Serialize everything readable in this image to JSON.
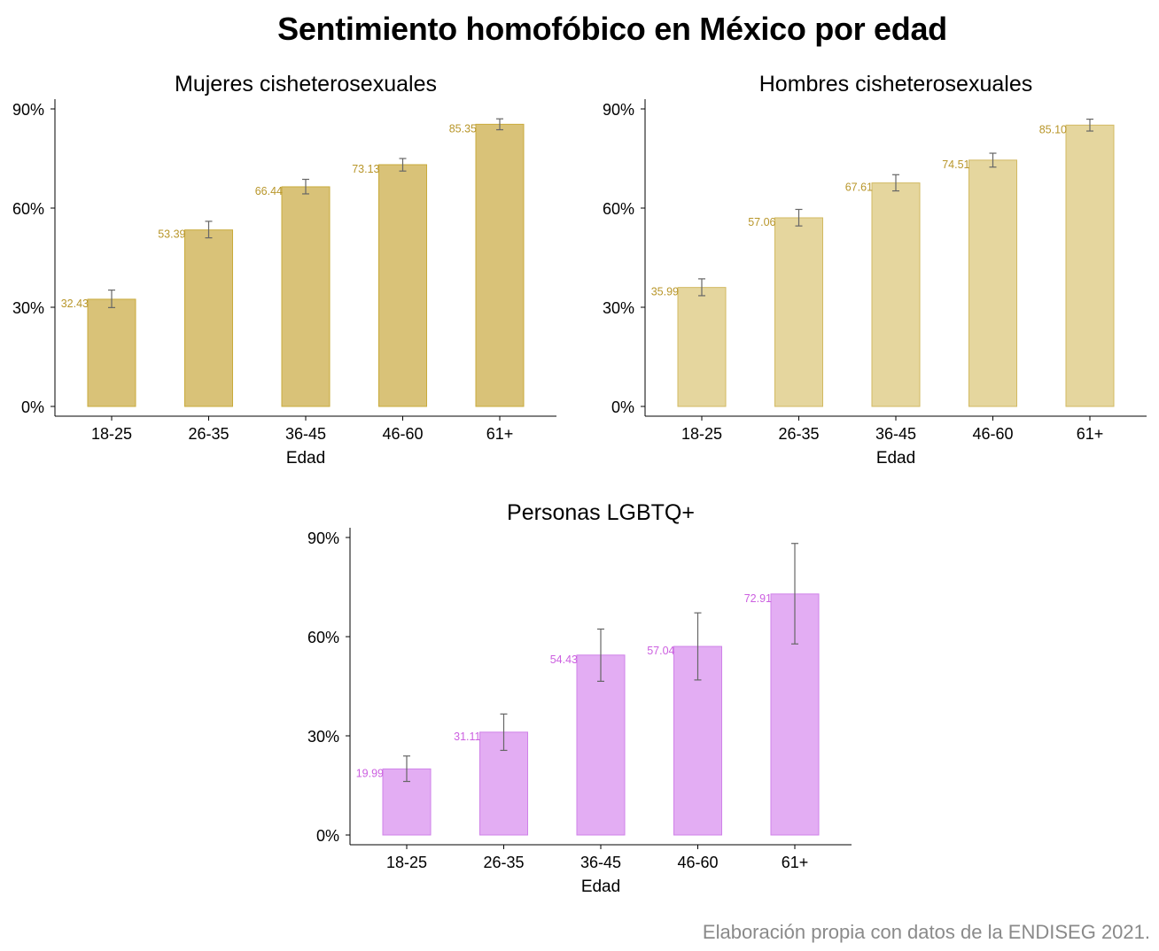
{
  "title": "Sentimiento homofóbico en México por edad",
  "caption": "Elaboración propia con datos de la ENDISEG 2021.",
  "chart_data": [
    {
      "type": "bar",
      "title": "Mujeres cisheterosexuales",
      "xlabel": "Edad",
      "ylabel": "",
      "categories": [
        "18-25",
        "26-35",
        "36-45",
        "46-60",
        "61+"
      ],
      "values": [
        32.43,
        53.39,
        66.44,
        73.13,
        85.35
      ],
      "value_labels": [
        "32.43",
        "53.39",
        "66.44",
        "73.13",
        "85.35"
      ],
      "error_low": [
        29.9,
        51.0,
        64.3,
        71.2,
        83.7
      ],
      "error_high": [
        35.2,
        56.0,
        68.7,
        75.0,
        87.0
      ],
      "ylim": [
        0,
        92
      ],
      "yticks": [
        0,
        30,
        60,
        90
      ],
      "ytick_labels": [
        "0%",
        "30%",
        "60%",
        "90%"
      ],
      "bar_color": "#d9c278",
      "bar_edge_color": "#c9ab3c",
      "label_color": "#b8962a"
    },
    {
      "type": "bar",
      "title": "Hombres cisheterosexuales",
      "xlabel": "Edad",
      "ylabel": "",
      "categories": [
        "18-25",
        "26-35",
        "36-45",
        "46-60",
        "61+"
      ],
      "values": [
        35.99,
        57.06,
        67.61,
        74.51,
        85.1
      ],
      "value_labels": [
        "35.99",
        "57.06",
        "67.61",
        "74.51",
        "85.10"
      ],
      "error_low": [
        33.5,
        54.6,
        65.2,
        72.4,
        83.3
      ],
      "error_high": [
        38.6,
        59.6,
        70.1,
        76.6,
        86.9
      ],
      "ylim": [
        0,
        92
      ],
      "yticks": [
        0,
        30,
        60,
        90
      ],
      "ytick_labels": [
        "0%",
        "30%",
        "60%",
        "90%"
      ],
      "bar_color": "#e5d69e",
      "bar_edge_color": "#d2ba62",
      "label_color": "#b8962a"
    },
    {
      "type": "bar",
      "title": "Personas LGBTQ+",
      "xlabel": "Edad",
      "ylabel": "",
      "categories": [
        "18-25",
        "26-35",
        "36-45",
        "46-60",
        "61+"
      ],
      "values": [
        19.99,
        31.11,
        54.43,
        57.04,
        72.91
      ],
      "value_labels": [
        "19.99",
        "31.11",
        "54.43",
        "57.04",
        "72.91"
      ],
      "error_low": [
        16.2,
        25.6,
        46.5,
        46.9,
        57.8
      ],
      "error_high": [
        23.9,
        36.6,
        62.3,
        67.2,
        88.2
      ],
      "ylim": [
        0,
        92
      ],
      "yticks": [
        0,
        30,
        60,
        90
      ],
      "ytick_labels": [
        "0%",
        "30%",
        "60%",
        "90%"
      ],
      "bar_color": "#e3adf3",
      "bar_edge_color": "#cf82e8",
      "label_color": "#cc5fe0"
    }
  ]
}
